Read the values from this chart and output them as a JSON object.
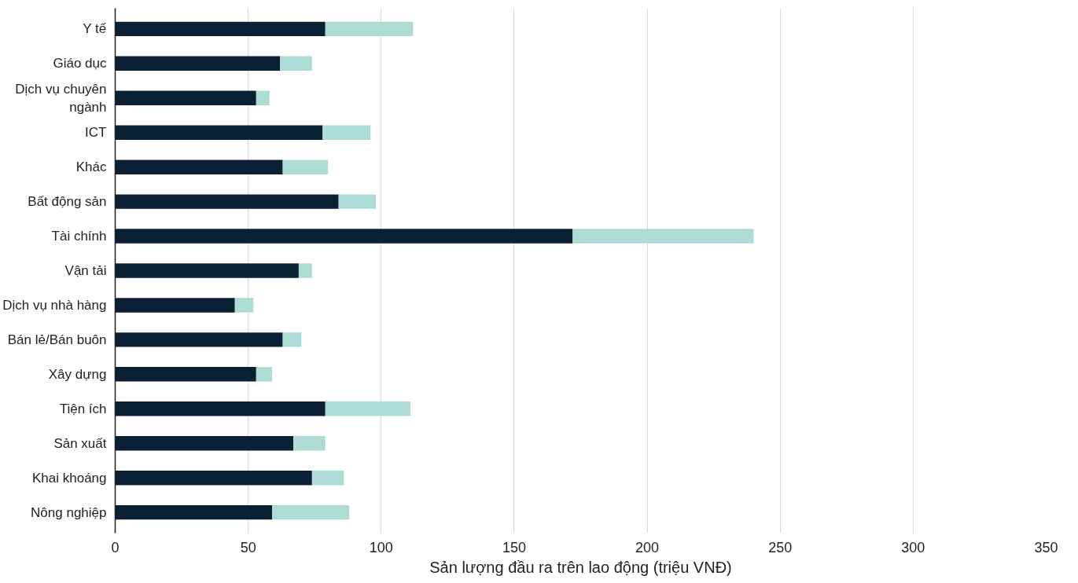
{
  "chart_data": {
    "type": "bar",
    "orientation": "horizontal",
    "stacked": true,
    "xlabel": "Sản lượng đầu ra trên lao động (triệu VNĐ)",
    "categories": [
      "Y tế",
      "Giáo dục",
      "Dịch vụ chuyên ngành",
      "ICT",
      "Khác",
      "Bất động sản",
      "Tài chính",
      "Vận tải",
      "Dịch vụ nhà hàng",
      "Bán lẻ/Bán buôn",
      "Xây dựng",
      "Tiện ích",
      "Sản xuất",
      "Khai khoáng",
      "Nông nghiệp"
    ],
    "series": [
      {
        "color": "#0b1f35",
        "values": [
          79,
          62,
          53,
          78,
          63,
          84,
          172,
          69,
          45,
          63,
          53,
          79,
          67,
          74,
          59
        ]
      },
      {
        "color": "#acdcd4",
        "values": [
          33,
          12,
          5,
          18,
          17,
          14,
          68,
          5,
          7,
          7,
          6,
          32,
          12,
          12,
          29
        ]
      }
    ],
    "xlim": [
      0,
      350
    ],
    "xticks": [
      0,
      50,
      100,
      150,
      200,
      250,
      300,
      350
    ],
    "grid": "x"
  }
}
